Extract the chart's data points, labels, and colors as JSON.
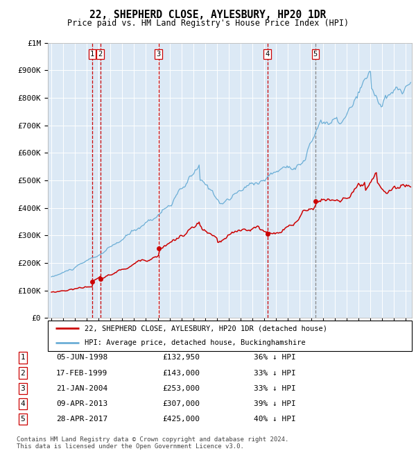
{
  "title": "22, SHEPHERD CLOSE, AYLESBURY, HP20 1DR",
  "subtitle": "Price paid vs. HM Land Registry's House Price Index (HPI)",
  "bg_color": "#dce9f5",
  "hpi_color": "#6baed6",
  "price_color": "#cc0000",
  "marker_color": "#cc0000",
  "ylim": [
    0,
    1000000
  ],
  "yticks": [
    0,
    100000,
    200000,
    300000,
    400000,
    500000,
    600000,
    700000,
    800000,
    900000,
    1000000
  ],
  "ytick_labels": [
    "£0",
    "£100K",
    "£200K",
    "£300K",
    "£400K",
    "£500K",
    "£600K",
    "£700K",
    "£800K",
    "£900K",
    "£1M"
  ],
  "xlim_start": 1994.7,
  "xlim_end": 2025.5,
  "transactions": [
    {
      "num": 1,
      "year": 1998.44,
      "price": 132950,
      "vline_color": "#cc0000"
    },
    {
      "num": 2,
      "year": 1999.13,
      "price": 143000,
      "vline_color": "#cc0000"
    },
    {
      "num": 3,
      "year": 2004.06,
      "price": 253000,
      "vline_color": "#cc0000"
    },
    {
      "num": 4,
      "year": 2013.27,
      "price": 307000,
      "vline_color": "#cc0000"
    },
    {
      "num": 5,
      "year": 2017.33,
      "price": 425000,
      "vline_color": "#888888"
    }
  ],
  "legend_entries": [
    {
      "label": "22, SHEPHERD CLOSE, AYLESBURY, HP20 1DR (detached house)",
      "color": "#cc0000"
    },
    {
      "label": "HPI: Average price, detached house, Buckinghamshire",
      "color": "#6baed6"
    }
  ],
  "footer": "Contains HM Land Registry data © Crown copyright and database right 2024.\nThis data is licensed under the Open Government Licence v3.0.",
  "table_rows": [
    {
      "num": 1,
      "date": "05-JUN-1998",
      "price": "£132,950",
      "pct": "36% ↓ HPI"
    },
    {
      "num": 2,
      "date": "17-FEB-1999",
      "price": "£143,000",
      "pct": "33% ↓ HPI"
    },
    {
      "num": 3,
      "date": "21-JAN-2004",
      "price": "£253,000",
      "pct": "33% ↓ HPI"
    },
    {
      "num": 4,
      "date": "09-APR-2013",
      "price": "£307,000",
      "pct": "39% ↓ HPI"
    },
    {
      "num": 5,
      "date": "28-APR-2017",
      "price": "£425,000",
      "pct": "40% ↓ HPI"
    }
  ]
}
